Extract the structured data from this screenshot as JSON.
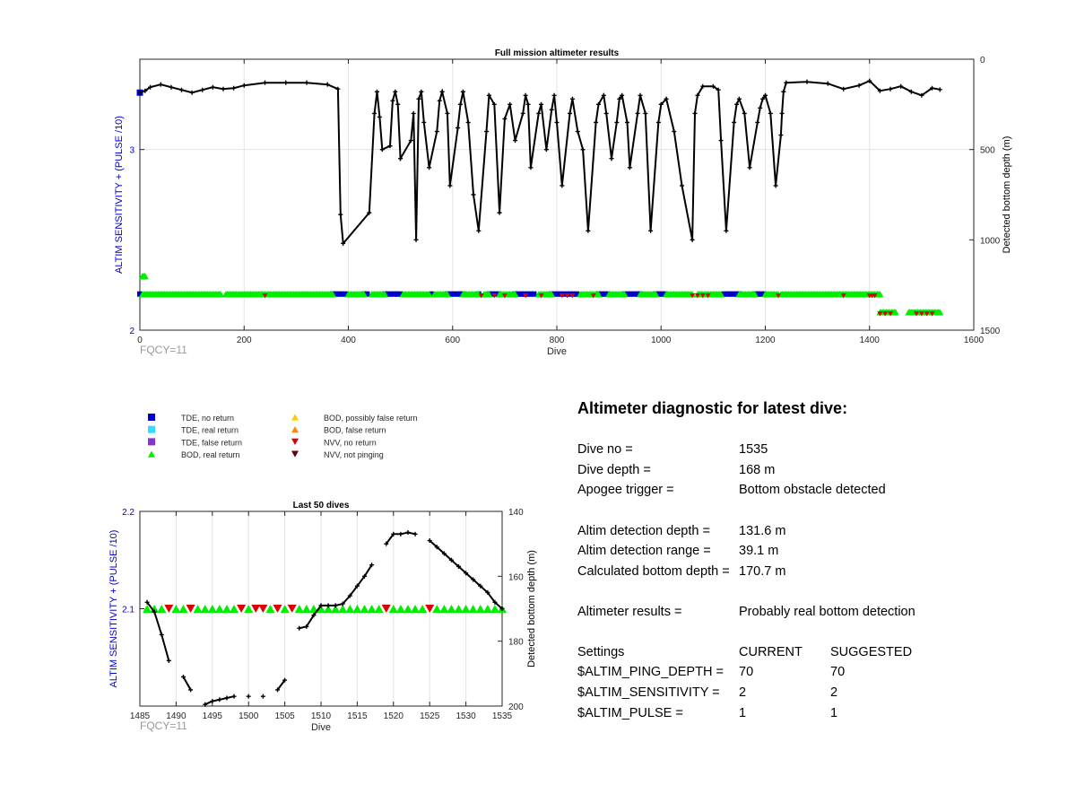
{
  "chart_data": [
    {
      "type": "scatter",
      "title": "Full mission altimeter results",
      "xlabel": "Dive",
      "ylabel_left": "ALTIM SENSITIVITY + (PULSE /10)",
      "ylabel_right": "Detected bottom depth (m)",
      "xlim": [
        0,
        1600
      ],
      "xticks": [
        0,
        200,
        400,
        600,
        800,
        1000,
        1200,
        1400,
        1600
      ],
      "ylim_left": [
        2,
        3.5
      ],
      "yticks_left": [
        2,
        3
      ],
      "ylim_right": [
        1500,
        0
      ],
      "yticks_right": [
        0,
        500,
        1000,
        1500
      ],
      "annotation": "FQCY=11",
      "series": [
        {
          "name": "TDE, no return",
          "color": "#0000cc",
          "marker": "square",
          "segments": [
            [
              0,
              0
            ],
            [
              370,
              395
            ],
            [
              430,
              440
            ],
            [
              470,
              505
            ],
            [
              560,
              560
            ],
            [
              590,
              620
            ],
            [
              650,
              650
            ],
            [
              670,
              690
            ],
            [
              720,
              760
            ],
            [
              790,
              840
            ],
            [
              880,
              900
            ],
            [
              930,
              960
            ],
            [
              990,
              1010
            ],
            [
              1120,
              1150
            ],
            [
              1180,
              1200
            ]
          ]
        },
        {
          "name": "BOD, real return",
          "color": "#00ee00",
          "marker": "triangle-up",
          "segments": [
            [
              5,
              12
            ],
            [
              5,
              155
            ],
            [
              165,
              320
            ],
            [
              320,
              370
            ],
            [
              400,
              430
            ],
            [
              445,
              470
            ],
            [
              505,
              555
            ],
            [
              565,
              590
            ],
            [
              620,
              650
            ],
            [
              660,
              670
            ],
            [
              690,
              720
            ],
            [
              765,
              790
            ],
            [
              845,
              880
            ],
            [
              900,
              930
            ],
            [
              960,
              990
            ],
            [
              1010,
              1060
            ],
            [
              1070,
              1115
            ],
            [
              1150,
              1180
            ],
            [
              1200,
              1225
            ],
            [
              1230,
              1420
            ],
            [
              1420,
              1450
            ],
            [
              1475,
              1535
            ]
          ]
        },
        {
          "name": "NVV, no return",
          "color": "#dd0000",
          "marker": "triangle-down",
          "points": [
            240,
            655,
            680,
            700,
            740,
            770,
            810,
            820,
            830,
            870,
            1060,
            1070,
            1080,
            1090,
            1225,
            1350,
            1400,
            1405,
            1410,
            1420,
            1430,
            1440,
            1490,
            1500,
            1510,
            1520
          ]
        }
      ],
      "depth_track": [
        [
          0,
          185
        ],
        [
          10,
          175
        ],
        [
          20,
          155
        ],
        [
          40,
          140
        ],
        [
          60,
          155
        ],
        [
          80,
          170
        ],
        [
          100,
          185
        ],
        [
          120,
          170
        ],
        [
          140,
          155
        ],
        [
          160,
          165
        ],
        [
          180,
          160
        ],
        [
          200,
          145
        ],
        [
          240,
          130
        ],
        [
          280,
          130
        ],
        [
          320,
          130
        ],
        [
          360,
          140
        ],
        [
          380,
          165
        ],
        [
          385,
          860
        ],
        [
          390,
          1020
        ],
        [
          440,
          850
        ],
        [
          450,
          300
        ],
        [
          455,
          180
        ],
        [
          460,
          320
        ],
        [
          465,
          500
        ],
        [
          480,
          480
        ],
        [
          485,
          230
        ],
        [
          490,
          180
        ],
        [
          495,
          250
        ],
        [
          500,
          550
        ],
        [
          520,
          450
        ],
        [
          525,
          300
        ],
        [
          530,
          1000
        ],
        [
          535,
          220
        ],
        [
          540,
          180
        ],
        [
          545,
          350
        ],
        [
          555,
          600
        ],
        [
          570,
          400
        ],
        [
          575,
          230
        ],
        [
          580,
          180
        ],
        [
          590,
          300
        ],
        [
          595,
          700
        ],
        [
          610,
          380
        ],
        [
          615,
          250
        ],
        [
          620,
          180
        ],
        [
          630,
          350
        ],
        [
          640,
          750
        ],
        [
          650,
          950
        ],
        [
          665,
          400
        ],
        [
          670,
          200
        ],
        [
          680,
          250
        ],
        [
          690,
          850
        ],
        [
          700,
          330
        ],
        [
          710,
          250
        ],
        [
          720,
          450
        ],
        [
          735,
          300
        ],
        [
          740,
          200
        ],
        [
          745,
          250
        ],
        [
          750,
          600
        ],
        [
          765,
          300
        ],
        [
          770,
          250
        ],
        [
          780,
          500
        ],
        [
          790,
          280
        ],
        [
          795,
          200
        ],
        [
          800,
          350
        ],
        [
          810,
          700
        ],
        [
          825,
          300
        ],
        [
          830,
          220
        ],
        [
          840,
          400
        ],
        [
          850,
          500
        ],
        [
          860,
          950
        ],
        [
          875,
          350
        ],
        [
          880,
          250
        ],
        [
          890,
          200
        ],
        [
          895,
          300
        ],
        [
          905,
          550
        ],
        [
          915,
          350
        ],
        [
          920,
          220
        ],
        [
          925,
          200
        ],
        [
          935,
          350
        ],
        [
          940,
          600
        ],
        [
          955,
          300
        ],
        [
          960,
          200
        ],
        [
          970,
          300
        ],
        [
          980,
          950
        ],
        [
          995,
          350
        ],
        [
          1000,
          250
        ],
        [
          1010,
          220
        ],
        [
          1025,
          400
        ],
        [
          1040,
          700
        ],
        [
          1060,
          1000
        ],
        [
          1065,
          300
        ],
        [
          1070,
          200
        ],
        [
          1080,
          150
        ],
        [
          1100,
          150
        ],
        [
          1110,
          170
        ],
        [
          1115,
          450
        ],
        [
          1125,
          950
        ],
        [
          1140,
          350
        ],
        [
          1145,
          250
        ],
        [
          1150,
          220
        ],
        [
          1160,
          300
        ],
        [
          1170,
          600
        ],
        [
          1185,
          350
        ],
        [
          1190,
          270
        ],
        [
          1195,
          220
        ],
        [
          1200,
          200
        ],
        [
          1210,
          300
        ],
        [
          1220,
          700
        ],
        [
          1230,
          420
        ],
        [
          1232,
          300
        ],
        [
          1235,
          180
        ],
        [
          1240,
          130
        ],
        [
          1280,
          125
        ],
        [
          1320,
          135
        ],
        [
          1350,
          165
        ],
        [
          1380,
          145
        ],
        [
          1400,
          120
        ],
        [
          1420,
          175
        ],
        [
          1440,
          165
        ],
        [
          1460,
          150
        ],
        [
          1480,
          180
        ],
        [
          1500,
          200
        ],
        [
          1520,
          160
        ],
        [
          1535,
          168
        ]
      ]
    },
    {
      "type": "scatter",
      "title": "Last 50 dives",
      "xlabel": "Dive",
      "ylabel_left": "ALTIM SENSITIVITY + (PULSE /10)",
      "ylabel_right": "Detected bottom depth (m)",
      "xlim": [
        1485,
        1535
      ],
      "xticks": [
        1485,
        1490,
        1495,
        1500,
        1505,
        1510,
        1515,
        1520,
        1525,
        1530,
        1535
      ],
      "ylim_left": [
        2,
        2.2
      ],
      "yticks_left": [
        2.1,
        2.2
      ],
      "ylim_right": [
        200,
        140
      ],
      "yticks_right": [
        140,
        160,
        180,
        200
      ],
      "annotation": "FQCY=11",
      "bod_dives": [
        1486,
        1487,
        1488,
        1490,
        1491,
        1493,
        1494,
        1495,
        1496,
        1497,
        1498,
        1500,
        1503,
        1505,
        1507,
        1508,
        1509,
        1510,
        1511,
        1512,
        1513,
        1514,
        1515,
        1516,
        1517,
        1518,
        1520,
        1521,
        1522,
        1523,
        1524,
        1526,
        1527,
        1528,
        1529,
        1530,
        1531,
        1532,
        1533,
        1534,
        1535
      ],
      "nvv_dives": [
        1489,
        1492,
        1499,
        1501,
        1502,
        1504,
        1506,
        1519,
        1525
      ],
      "depth_segments": [
        [
          [
            1486,
            168
          ],
          [
            1487,
            171
          ],
          [
            1488,
            178
          ],
          [
            1489,
            186
          ]
        ],
        [
          [
            1491,
            191
          ],
          [
            1492,
            195
          ]
        ],
        [
          [
            1494,
            199.5
          ],
          [
            1495,
            198.5
          ],
          [
            1496,
            198
          ],
          [
            1497,
            197.5
          ],
          [
            1498,
            197
          ]
        ],
        [
          [
            1500,
            197
          ]
        ],
        [
          [
            1502,
            197
          ]
        ],
        [
          [
            1504,
            195
          ],
          [
            1505,
            192
          ]
        ],
        [
          [
            1507,
            176
          ],
          [
            1508,
            175.5
          ],
          [
            1509,
            172
          ],
          [
            1510,
            169
          ],
          [
            1511,
            169
          ],
          [
            1512,
            169
          ],
          [
            1513,
            168.5
          ],
          [
            1514,
            166
          ],
          [
            1515,
            163
          ],
          [
            1516,
            160
          ],
          [
            1517,
            156.5
          ]
        ],
        [
          [
            1519,
            150
          ],
          [
            1520,
            147
          ],
          [
            1521,
            147
          ],
          [
            1522,
            146.5
          ],
          [
            1523,
            147
          ]
        ],
        [
          [
            1525,
            149
          ],
          [
            1526,
            151
          ],
          [
            1527,
            153
          ],
          [
            1528,
            155
          ],
          [
            1529,
            157
          ],
          [
            1530,
            159
          ],
          [
            1531,
            161
          ],
          [
            1532,
            163
          ],
          [
            1533,
            165
          ],
          [
            1534,
            168
          ],
          [
            1535,
            170
          ]
        ]
      ]
    }
  ],
  "legend": [
    {
      "label": "TDE, no return",
      "color": "#0000cc",
      "marker": "square"
    },
    {
      "label": "TDE, real return",
      "color": "#33ddff",
      "marker": "square"
    },
    {
      "label": "TDE, false return",
      "color": "#8833cc",
      "marker": "square"
    },
    {
      "label": "BOD, real return",
      "color": "#00ee00",
      "marker": "triangle-up"
    },
    {
      "label": "BOD, possibly false return",
      "color": "#ffcc00",
      "marker": "triangle-up"
    },
    {
      "label": "BOD, false return",
      "color": "#ff8800",
      "marker": "triangle-up"
    },
    {
      "label": "NVV, no return",
      "color": "#dd0000",
      "marker": "triangle-down"
    },
    {
      "label": "NVV, not pinging",
      "color": "#660000",
      "marker": "triangle-down"
    }
  ],
  "diagnostic": {
    "title": "Altimeter diagnostic for latest dive:",
    "dive_no_label": "Dive no =",
    "dive_no": "1535",
    "dive_depth_label": "Dive depth =",
    "dive_depth": "168 m",
    "apogee_label": "Apogee trigger =",
    "apogee": "Bottom obstacle detected",
    "det_depth_label": "Altim detection depth =",
    "det_depth": "131.6 m",
    "det_range_label": "Altim detection range =",
    "det_range": "39.1 m",
    "calc_depth_label": "Calculated bottom depth =",
    "calc_depth": "170.7 m",
    "results_label": "Altimeter results =",
    "results": "Probably real bottom detection",
    "settings_label": "Settings",
    "current_label": "CURRENT",
    "suggested_label": "SUGGESTED",
    "settings": [
      {
        "name": "$ALTIM_PING_DEPTH =",
        "current": "70",
        "suggested": "70"
      },
      {
        "name": "$ALTIM_SENSITIVITY =",
        "current": "2",
        "suggested": "2"
      },
      {
        "name": "$ALTIM_PULSE =",
        "current": "1",
        "suggested": "1"
      }
    ]
  }
}
